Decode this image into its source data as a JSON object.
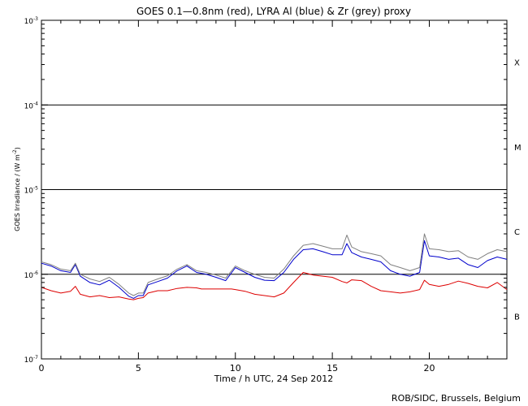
{
  "chart_data": {
    "type": "line",
    "title": "GOES 0.1—0.8nm (red), LYRA Al (blue) & Zr (grey) proxy",
    "xlabel": "Time / h UTC, 24 Sep 2012",
    "ylabel_main": "GOES Irradiance / (W m",
    "ylabel_sup": "-2",
    "ylabel_end": ")",
    "xlim": [
      0,
      24
    ],
    "ylim": [
      1e-07,
      0.001
    ],
    "yscale": "log",
    "x_ticks": [
      0,
      5,
      10,
      15,
      20
    ],
    "x_tick_labels": [
      "0",
      "5",
      "10",
      "15",
      "20"
    ],
    "y_ticks": [
      {
        "value": 1e-07,
        "base": "10",
        "exp": "-7"
      },
      {
        "value": 1e-06,
        "base": "10",
        "exp": "-6"
      },
      {
        "value": 1e-05,
        "base": "10",
        "exp": "-5"
      },
      {
        "value": 0.0001,
        "base": "10",
        "exp": "-4"
      },
      {
        "value": 0.001,
        "base": "10",
        "exp": "-3"
      }
    ],
    "flare_classes": [
      {
        "label": "X",
        "value": 0.00032
      },
      {
        "label": "M",
        "value": 3.2e-05
      },
      {
        "label": "C",
        "value": 3.2e-06
      },
      {
        "label": "B",
        "value": 3.2e-07
      }
    ],
    "threshold_lines": [
      1e-06,
      1e-05,
      0.0001
    ],
    "series": [
      {
        "name": "GOES 0.1-0.8nm",
        "color": "#dd0000",
        "x": [
          0,
          0.5,
          1,
          1.5,
          1.75,
          2,
          2.5,
          3,
          3.5,
          4,
          4.5,
          4.75,
          5,
          5.25,
          5.5,
          6,
          6.5,
          7,
          7.5,
          8,
          8.25,
          9.8,
          10,
          10.5,
          11,
          11.5,
          12,
          12.5,
          13,
          13.5,
          14,
          14.5,
          15,
          15.5,
          15.75,
          16,
          16.5,
          17,
          17.5,
          18,
          18.5,
          19,
          19.5,
          19.75,
          20,
          20.5,
          21,
          21.5,
          22,
          22.5,
          23,
          23.5,
          24
        ],
        "y": [
          7e-07,
          6.4e-07,
          6e-07,
          6.3e-07,
          7.2e-07,
          5.8e-07,
          5.4e-07,
          5.6e-07,
          5.3e-07,
          5.4e-07,
          5.1e-07,
          5e-07,
          5.2e-07,
          5.3e-07,
          6e-07,
          6.4e-07,
          6.4e-07,
          6.8e-07,
          7e-07,
          6.9e-07,
          6.7e-07,
          6.7e-07,
          6.6e-07,
          6.3e-07,
          5.8e-07,
          5.6e-07,
          5.4e-07,
          6e-07,
          8e-07,
          1.05e-06,
          9.8e-07,
          9.5e-07,
          9.2e-07,
          8.2e-07,
          7.9e-07,
          8.6e-07,
          8.4e-07,
          7.2e-07,
          6.4e-07,
          6.2e-07,
          6e-07,
          6.2e-07,
          6.6e-07,
          8.5e-07,
          7.6e-07,
          7.2e-07,
          7.6e-07,
          8.3e-07,
          7.8e-07,
          7.2e-07,
          6.9e-07,
          8e-07,
          6.6e-07
        ]
      },
      {
        "name": "LYRA Al proxy",
        "color": "#0000cc",
        "x": [
          0,
          0.5,
          1,
          1.5,
          1.75,
          2,
          2.5,
          3,
          3.5,
          4,
          4.5,
          4.75,
          5,
          5.25,
          5.5,
          6,
          6.5,
          7,
          7.5,
          8,
          8.5,
          9,
          9.5,
          10,
          10.5,
          11,
          11.5,
          12,
          12.5,
          13,
          13.5,
          14,
          14.5,
          15,
          15.5,
          15.75,
          16,
          16.5,
          17,
          17.5,
          18,
          18.5,
          19,
          19.5,
          19.75,
          20,
          20.5,
          21,
          21.5,
          22,
          22.5,
          23,
          23.5,
          24
        ],
        "y": [
          1.35e-06,
          1.25e-06,
          1.1e-06,
          1.05e-06,
          1.3e-06,
          9.5e-07,
          8e-07,
          7.5e-07,
          8.5e-07,
          7e-07,
          5.5e-07,
          5.2e-07,
          5.6e-07,
          5.6e-07,
          7.5e-07,
          8.2e-07,
          9e-07,
          1.1e-06,
          1.25e-06,
          1.05e-06,
          1e-06,
          9.2e-07,
          8.4e-07,
          1.2e-06,
          1.05e-06,
          9.2e-07,
          8.5e-07,
          8.4e-07,
          1.05e-06,
          1.5e-06,
          1.95e-06,
          2e-06,
          1.85e-06,
          1.7e-06,
          1.7e-06,
          2.3e-06,
          1.8e-06,
          1.6e-06,
          1.5e-06,
          1.4e-06,
          1.1e-06,
          1e-06,
          9.5e-07,
          1.05e-06,
          2.5e-06,
          1.65e-06,
          1.6e-06,
          1.5e-06,
          1.55e-06,
          1.3e-06,
          1.2e-06,
          1.45e-06,
          1.6e-06,
          1.5e-06
        ]
      },
      {
        "name": "LYRA Zr proxy",
        "color": "#808080",
        "x": [
          0,
          0.5,
          1,
          1.5,
          1.75,
          2,
          2.5,
          3,
          3.5,
          4,
          4.5,
          4.75,
          5,
          5.25,
          5.5,
          6,
          6.5,
          7,
          7.5,
          8,
          8.5,
          9,
          9.5,
          10,
          10.5,
          11,
          11.5,
          12,
          12.5,
          13,
          13.5,
          14,
          14.5,
          15,
          15.5,
          15.75,
          16,
          16.5,
          17,
          17.5,
          18,
          18.5,
          19,
          19.5,
          19.75,
          20,
          20.5,
          21,
          21.5,
          22,
          22.5,
          23,
          23.5,
          24
        ],
        "y": [
          1.4e-06,
          1.3e-06,
          1.15e-06,
          1.1e-06,
          1.35e-06,
          1e-06,
          8.8e-07,
          8.2e-07,
          9.2e-07,
          7.6e-07,
          6e-07,
          5.6e-07,
          6e-07,
          6e-07,
          8e-07,
          8.8e-07,
          9.6e-07,
          1.15e-06,
          1.3e-06,
          1.1e-06,
          1.05e-06,
          9.8e-07,
          9e-07,
          1.25e-06,
          1.1e-06,
          1e-06,
          9.2e-07,
          9e-07,
          1.15e-06,
          1.65e-06,
          2.2e-06,
          2.3e-06,
          2.15e-06,
          2e-06,
          2e-06,
          2.9e-06,
          2.1e-06,
          1.85e-06,
          1.75e-06,
          1.65e-06,
          1.3e-06,
          1.2e-06,
          1.1e-06,
          1.2e-06,
          3e-06,
          2e-06,
          1.95e-06,
          1.85e-06,
          1.9e-06,
          1.6e-06,
          1.5e-06,
          1.75e-06,
          1.95e-06,
          1.85e-06
        ]
      }
    ],
    "credit": "ROB/SIDC, Brussels, Belgium"
  }
}
